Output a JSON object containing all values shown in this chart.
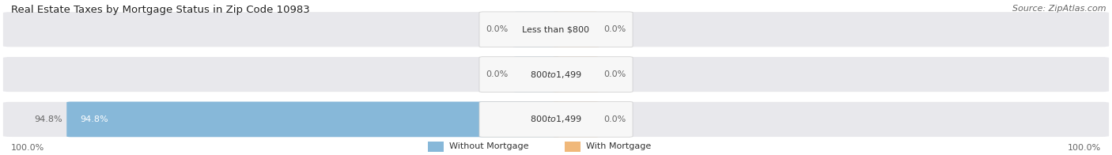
{
  "title": "Real Estate Taxes by Mortgage Status in Zip Code 10983",
  "source": "Source: ZipAtlas.com",
  "rows": [
    {
      "label": "Less than $800",
      "without_mortgage": 0.0,
      "with_mortgage": 0.0
    },
    {
      "label": "$800 to $1,499",
      "without_mortgage": 0.0,
      "with_mortgage": 0.0
    },
    {
      "label": "$800 to $1,499",
      "without_mortgage": 94.8,
      "with_mortgage": 0.0
    }
  ],
  "color_without": "#87b8d9",
  "color_with": "#f0b87a",
  "background_bar": "#e8e8ec",
  "label_bg": "#f7f7f7",
  "border_color": "#cccccc",
  "text_dark": "#333333",
  "text_gray": "#666666",
  "axis_left_label": "100.0%",
  "axis_right_label": "100.0%",
  "legend_without": "Without Mortgage",
  "legend_with": "With Mortgage",
  "title_fontsize": 9.5,
  "source_fontsize": 8,
  "bar_label_fontsize": 8,
  "legend_fontsize": 8
}
